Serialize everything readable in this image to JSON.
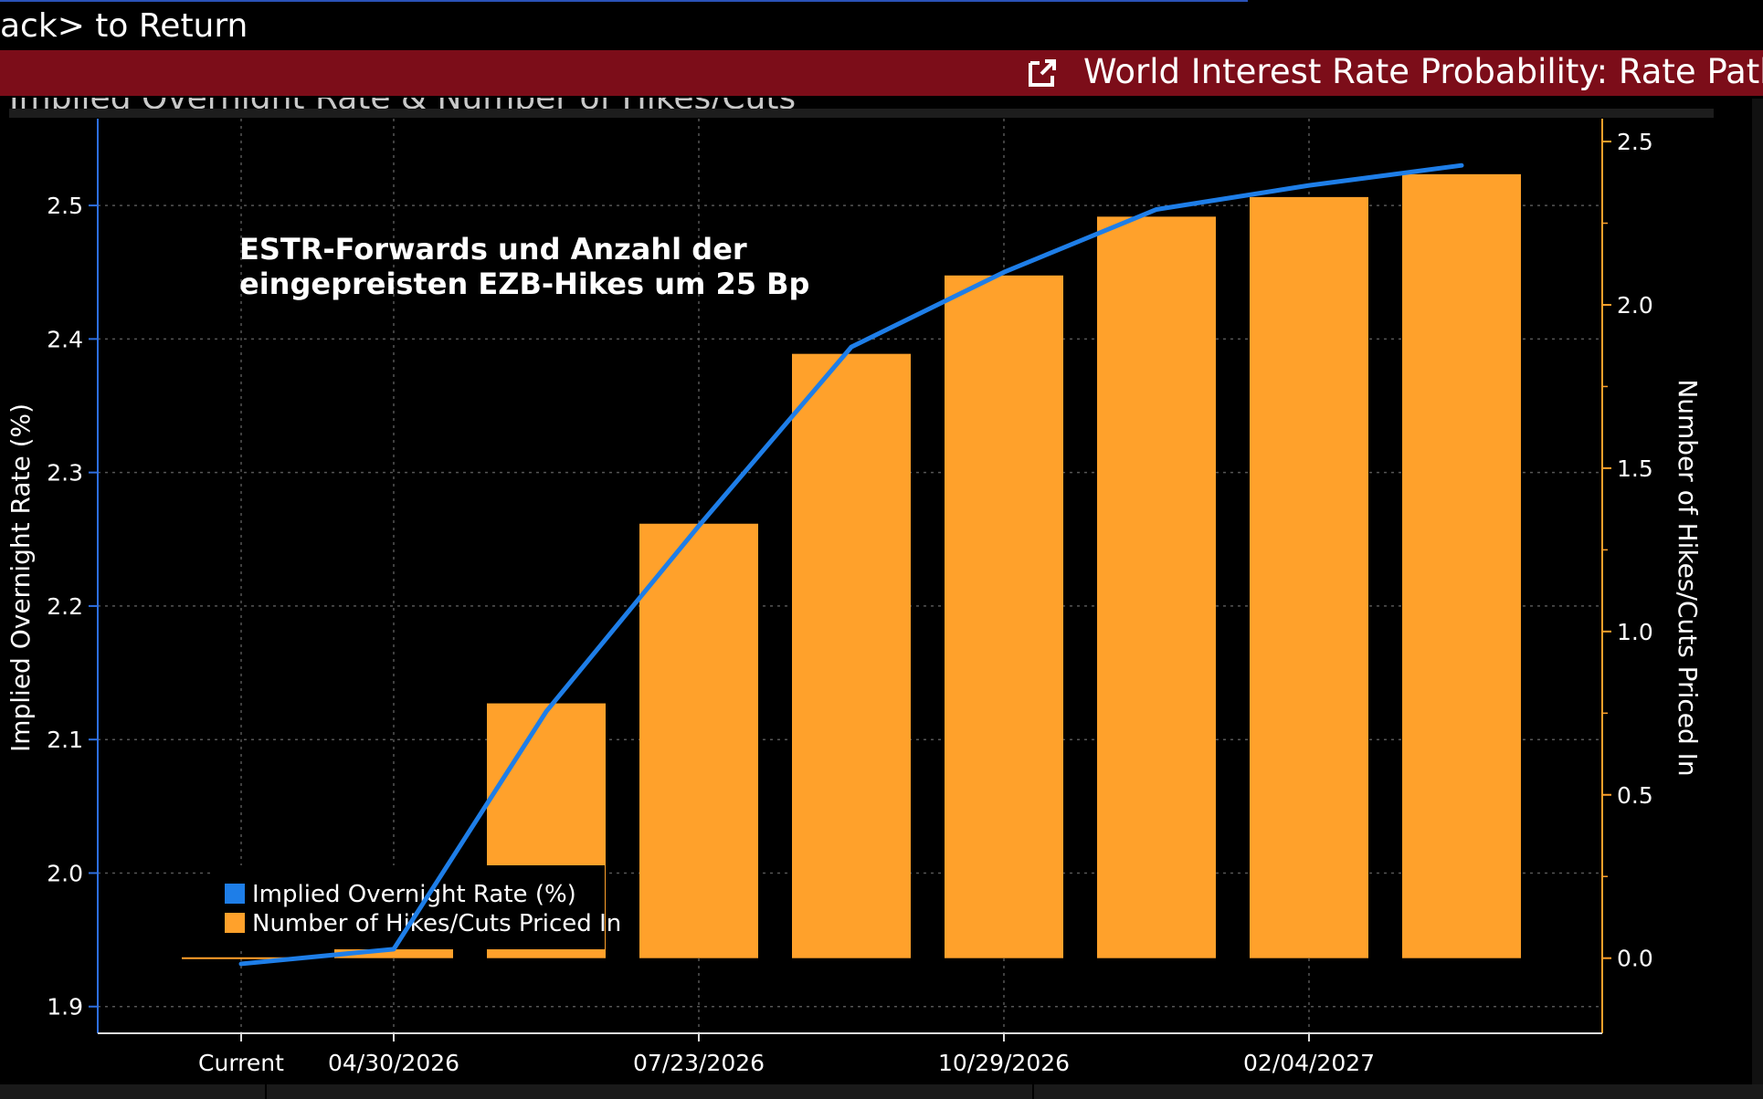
{
  "header": {
    "back_text": "ack> to Return",
    "title": "World Interest Rate Probability: Rate Path",
    "subtitle": "Implied Overnight Rate & Number of Hikes/Cuts"
  },
  "colors": {
    "title_bar": "#7c0d19",
    "line": "#1e7ee8",
    "bar": "#ffa12b",
    "left_axis": "#2e6fe0",
    "right_axis": "#ffa12b",
    "grid": "#555555"
  },
  "icons": {
    "export": "export-icon"
  },
  "chart_data": {
    "type": "bar+line",
    "annotation": [
      "ESTR-Forwards und Anzahl der",
      "eingepreisten EZB-Hikes um 25 Bp"
    ],
    "ylabel_left": "Implied Overnight Rate (%)",
    "ylabel_right": "Number of Hikes/Cuts Priced In",
    "ylim_left": [
      1.88,
      2.565
    ],
    "ylim_right": [
      -0.23,
      2.57
    ],
    "yticks_left": [
      1.9,
      2.0,
      2.1,
      2.2,
      2.3,
      2.4,
      2.5
    ],
    "yticks_right": [
      0.0,
      0.5,
      1.0,
      1.5,
      2.0,
      2.5
    ],
    "ytick_labels_left": [
      "1.9",
      "2.0",
      "2.1",
      "2.2",
      "2.3",
      "2.4",
      "2.5"
    ],
    "ytick_labels_right": [
      "0.0",
      "0.5",
      "1.0",
      "1.5",
      "2.0",
      "2.5"
    ],
    "x_count": 9,
    "x_labels": [
      {
        "index": 0,
        "text": "Current"
      },
      {
        "index": 1,
        "text": "04/30/2026"
      },
      {
        "index": 3,
        "text": "07/23/2026"
      },
      {
        "index": 5,
        "text": "10/29/2026"
      },
      {
        "index": 7,
        "text": "02/04/2027"
      }
    ],
    "series": [
      {
        "name": "Implied Overnight Rate (%)",
        "type": "line",
        "axis": "left",
        "values": [
          1.932,
          1.943,
          2.121,
          2.26,
          2.394,
          2.45,
          2.497,
          2.515,
          2.53
        ]
      },
      {
        "name": "Number of Hikes/Cuts Priced In",
        "type": "bar",
        "axis": "right",
        "values": [
          0.0,
          0.04,
          0.78,
          1.33,
          1.85,
          2.09,
          2.27,
          2.33,
          2.4
        ]
      }
    ],
    "legend": {
      "position": "bottom-left",
      "entries": [
        "Implied Overnight Rate (%)",
        "Number of Hikes/Cuts Priced In"
      ]
    },
    "grid": true
  }
}
